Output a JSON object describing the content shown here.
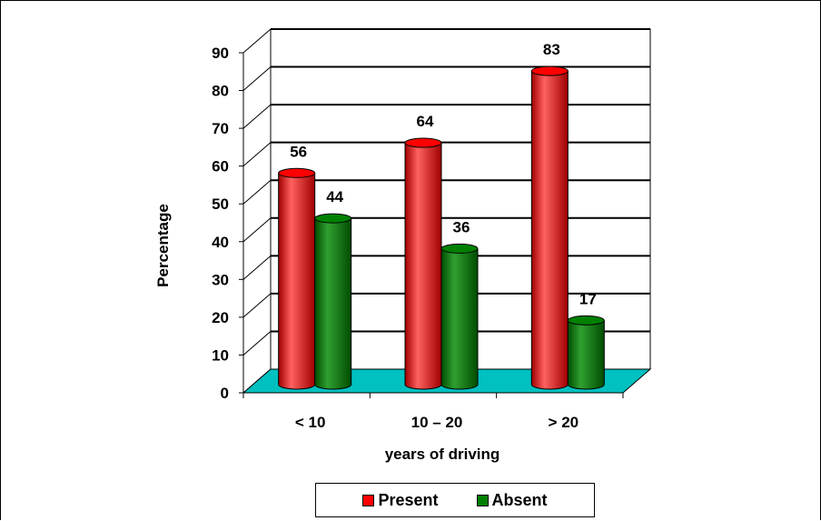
{
  "chart_data": {
    "type": "bar",
    "categories": [
      "<  10",
      "10 – 20",
      "> 20"
    ],
    "series": [
      {
        "name": "Present",
        "values": [
          56,
          64,
          83
        ],
        "color": "#ff0000"
      },
      {
        "name": "Absent",
        "values": [
          44,
          36,
          17
        ],
        "color": "#008000"
      }
    ],
    "value_labels": [
      [
        "56",
        "64",
        "83"
      ],
      [
        "44",
        "36",
        "17"
      ]
    ],
    "xlabel": "years of driving",
    "ylabel": "Percentage",
    "ylim": [
      0,
      90
    ],
    "yticks": [
      "0",
      "10",
      "20",
      "30",
      "40",
      "50",
      "60",
      "70",
      "80",
      "90"
    ],
    "style": "3d-cylinder",
    "floor_color": "#00c0c0",
    "gridlines": true,
    "legend_position": "bottom"
  }
}
